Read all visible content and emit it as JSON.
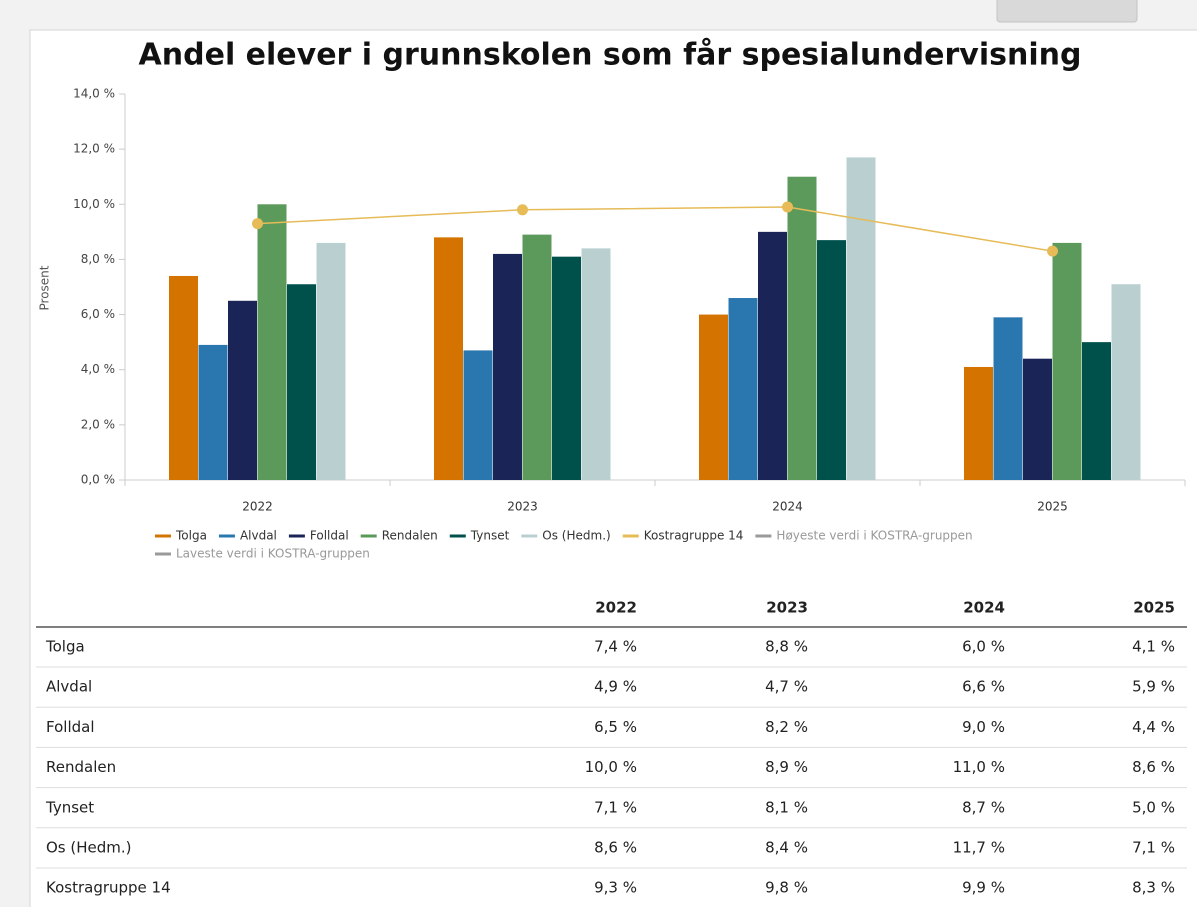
{
  "chart_data": {
    "type": "bar",
    "title": "Andel elever i grunnskolen som får spesialundervisning",
    "y_label": "Prosent",
    "categories": [
      "2022",
      "2023",
      "2024",
      "2025"
    ],
    "series": [
      {
        "name": "Tolga",
        "color": "#d57300",
        "values": [
          7.4,
          8.8,
          6.0,
          4.1
        ]
      },
      {
        "name": "Alvdal",
        "color": "#2a77b0",
        "values": [
          4.9,
          4.7,
          6.6,
          5.9
        ]
      },
      {
        "name": "Folldal",
        "color": "#1a2456",
        "values": [
          6.5,
          8.2,
          9.0,
          4.4
        ]
      },
      {
        "name": "Rendalen",
        "color": "#5b9a5b",
        "values": [
          10.0,
          8.9,
          11.0,
          8.6
        ]
      },
      {
        "name": "Tynset",
        "color": "#00504c",
        "values": [
          7.1,
          8.1,
          8.7,
          5.0
        ]
      },
      {
        "name": "Os (Hedm.)",
        "color": "#b9cfd0",
        "values": [
          8.6,
          8.4,
          11.7,
          7.1
        ]
      },
      {
        "name": "Kostragruppe 14",
        "color": "#e6bb58",
        "type": "line",
        "values": [
          9.3,
          9.8,
          9.9,
          8.3
        ]
      },
      {
        "name": "Høyeste verdi i KOSTRA-gruppen",
        "color": "#9a9a9a",
        "type": "line",
        "values": [
          null,
          null,
          null,
          null
        ]
      },
      {
        "name": "Laveste verdi i KOSTRA-gruppen",
        "color": "#9a9a9a",
        "type": "line",
        "values": [
          null,
          null,
          null,
          null
        ]
      }
    ],
    "ylim": [
      0,
      14
    ],
    "yticks": [
      {
        "value": 0,
        "label": "0,0 %"
      },
      {
        "value": 2,
        "label": "2,0 %"
      },
      {
        "value": 4,
        "label": "4,0 %"
      },
      {
        "value": 6,
        "label": "6,0 %"
      },
      {
        "value": 8,
        "label": "8,0 %"
      },
      {
        "value": 10,
        "label": "10,0 %"
      },
      {
        "value": 12,
        "label": "12,0 %"
      },
      {
        "value": 14,
        "label": "14,0 %"
      }
    ],
    "legend": "bottom"
  },
  "table": {
    "columns": [
      "2022",
      "2023",
      "2024",
      "2025"
    ],
    "rows": [
      [
        "Tolga",
        "7,4 %",
        "8,8 %",
        "6,0 %",
        "4,1 %"
      ],
      [
        "Alvdal",
        "4,9 %",
        "4,7 %",
        "6,6 %",
        "5,9 %"
      ],
      [
        "Folldal",
        "6,5 %",
        "8,2 %",
        "9,0 %",
        "4,4 %"
      ],
      [
        "Rendalen",
        "10,0 %",
        "8,9 %",
        "11,0 %",
        "8,6 %"
      ],
      [
        "Tynset",
        "7,1 %",
        "8,1 %",
        "8,7 %",
        "5,0 %"
      ],
      [
        "Os (Hedm.)",
        "8,6 %",
        "8,4 %",
        "11,7 %",
        "7,1 %"
      ],
      [
        "Kostragruppe 14",
        "9,3 %",
        "9,8 %",
        "9,9 %",
        "8,3 %"
      ]
    ]
  }
}
